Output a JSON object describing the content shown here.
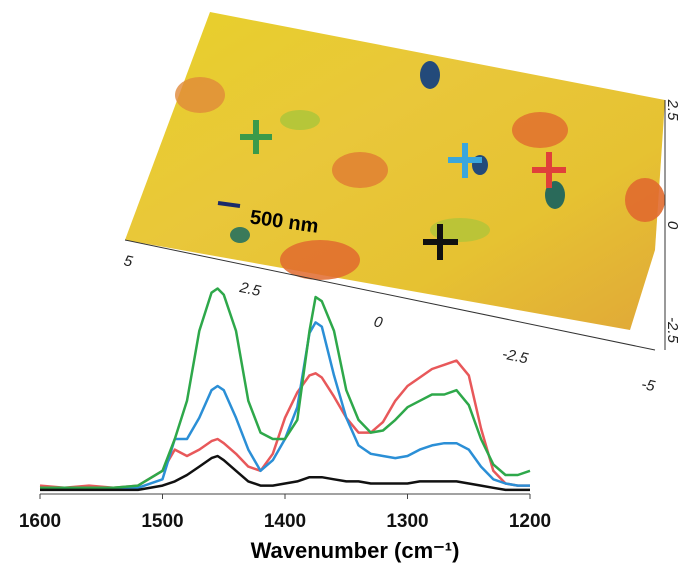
{
  "chart_data": {
    "type": "line",
    "x_label": "Wavenumber (cm⁻¹)",
    "xlim": [
      1600,
      1200
    ],
    "xticks": [
      1600,
      1500,
      1400,
      1300,
      1200
    ],
    "ylim": [
      0,
      1
    ],
    "x": [
      1600,
      1580,
      1560,
      1540,
      1520,
      1500,
      1490,
      1480,
      1470,
      1460,
      1455,
      1450,
      1440,
      1430,
      1420,
      1410,
      1400,
      1390,
      1380,
      1375,
      1370,
      1360,
      1350,
      1340,
      1330,
      1320,
      1310,
      1300,
      1290,
      1280,
      1270,
      1260,
      1250,
      1240,
      1230,
      1220,
      1210,
      1200
    ],
    "series": [
      {
        "color": "#e8585a",
        "values": [
          0.03,
          0.02,
          0.03,
          0.02,
          0.03,
          0.1,
          0.2,
          0.17,
          0.2,
          0.24,
          0.25,
          0.23,
          0.18,
          0.12,
          0.1,
          0.18,
          0.35,
          0.47,
          0.55,
          0.56,
          0.54,
          0.45,
          0.35,
          0.28,
          0.28,
          0.33,
          0.43,
          0.5,
          0.54,
          0.58,
          0.6,
          0.62,
          0.55,
          0.3,
          0.1,
          0.04,
          0.03,
          0.03
        ]
      },
      {
        "color": "#2b8fd6",
        "values": [
          0.02,
          0.02,
          0.02,
          0.02,
          0.02,
          0.06,
          0.25,
          0.25,
          0.35,
          0.48,
          0.5,
          0.48,
          0.35,
          0.2,
          0.1,
          0.15,
          0.25,
          0.4,
          0.75,
          0.8,
          0.78,
          0.55,
          0.35,
          0.22,
          0.18,
          0.17,
          0.16,
          0.17,
          0.2,
          0.22,
          0.23,
          0.23,
          0.2,
          0.12,
          0.06,
          0.04,
          0.03,
          0.03
        ]
      },
      {
        "color": "#2ea84a",
        "values": [
          0.02,
          0.02,
          0.02,
          0.02,
          0.03,
          0.1,
          0.25,
          0.43,
          0.76,
          0.94,
          0.96,
          0.93,
          0.76,
          0.43,
          0.28,
          0.25,
          0.25,
          0.34,
          0.76,
          0.92,
          0.9,
          0.76,
          0.48,
          0.34,
          0.28,
          0.29,
          0.34,
          0.4,
          0.43,
          0.46,
          0.46,
          0.48,
          0.41,
          0.25,
          0.13,
          0.08,
          0.08,
          0.1
        ]
      },
      {
        "color": "#111111",
        "values": [
          0.01,
          0.01,
          0.01,
          0.01,
          0.01,
          0.03,
          0.05,
          0.08,
          0.12,
          0.16,
          0.17,
          0.15,
          0.1,
          0.05,
          0.03,
          0.03,
          0.04,
          0.05,
          0.07,
          0.07,
          0.07,
          0.06,
          0.05,
          0.05,
          0.04,
          0.04,
          0.04,
          0.04,
          0.05,
          0.05,
          0.05,
          0.05,
          0.04,
          0.03,
          0.02,
          0.01,
          0.01,
          0.01
        ]
      }
    ]
  },
  "afm_image": {
    "scale_bar": "500 nm",
    "x_tick_labels": [
      "5",
      "2.5",
      "0",
      "-2.5",
      "-5"
    ],
    "y_tick_labels": [
      "2.5",
      "0",
      "-2.5"
    ]
  }
}
